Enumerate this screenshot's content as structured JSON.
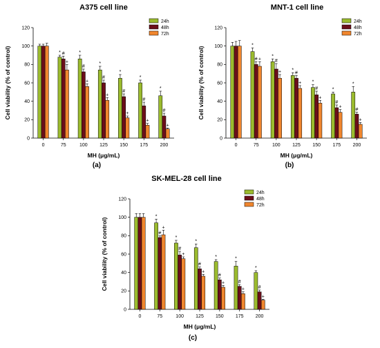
{
  "colors": {
    "24h": "#9bbb2e",
    "48h": "#6b0f1a",
    "72h": "#f0862e"
  },
  "chart_data": [
    {
      "type": "bar",
      "title": "A375 cell line",
      "panel_label": "(a)",
      "xlabel": "MH (μg/mL)",
      "ylabel": "Cell viability (% of control)",
      "ylim": [
        0,
        120
      ],
      "yticks": [
        0,
        20,
        40,
        60,
        80,
        100,
        120
      ],
      "grid": false,
      "legend_position": "top-right",
      "categories": [
        "0",
        "75",
        "100",
        "125",
        "150",
        "175",
        "200"
      ],
      "series": [
        {
          "name": "24h",
          "values": [
            100,
            88,
            86,
            74,
            65,
            60,
            46
          ],
          "errors": [
            2,
            2,
            4,
            4,
            4,
            3,
            5
          ],
          "marks": [
            "",
            "*",
            "*",
            "*",
            "*",
            "*",
            "*"
          ]
        },
        {
          "name": "48h",
          "values": [
            100,
            86,
            72,
            60,
            45,
            35,
            24
          ],
          "errors": [
            2,
            3,
            3,
            3,
            3,
            4,
            3
          ],
          "marks": [
            "",
            "#",
            "#",
            "#",
            "#",
            "#",
            "#"
          ]
        },
        {
          "name": "72h",
          "values": [
            100,
            74,
            56,
            41,
            22,
            14,
            10
          ],
          "errors": [
            3,
            6,
            3,
            3,
            2,
            2,
            1
          ],
          "marks": [
            "",
            "+",
            "+",
            "+",
            "+",
            "+",
            "+"
          ]
        }
      ]
    },
    {
      "type": "bar",
      "title": "MNT-1 cell line",
      "panel_label": "(b)",
      "xlabel": "MH (μg/mL)",
      "ylabel": "Cell viability (% of control)",
      "ylim": [
        0,
        120
      ],
      "yticks": [
        0,
        20,
        40,
        60,
        80,
        100,
        120
      ],
      "grid": false,
      "legend_position": "top-right",
      "categories": [
        "0",
        "75",
        "100",
        "125",
        "150",
        "175",
        "200"
      ],
      "series": [
        {
          "name": "24h",
          "values": [
            100,
            94,
            83,
            68,
            55,
            48,
            50
          ],
          "errors": [
            4,
            4,
            3,
            3,
            3,
            2,
            6
          ],
          "marks": [
            "",
            "*",
            "*",
            "*",
            "*",
            "*",
            "*"
          ]
        },
        {
          "name": "48h",
          "values": [
            100,
            80,
            75,
            65,
            47,
            33,
            26
          ],
          "errors": [
            5,
            3,
            6,
            3,
            4,
            3,
            2
          ],
          "marks": [
            "",
            "#",
            "#",
            "#",
            "#",
            "#",
            "#"
          ]
        },
        {
          "name": "72h",
          "values": [
            100,
            78,
            65,
            54,
            38,
            28,
            15
          ],
          "errors": [
            6,
            5,
            4,
            3,
            3,
            3,
            2
          ],
          "marks": [
            "",
            "+",
            "+",
            "+",
            "+",
            "+",
            "+"
          ]
        }
      ]
    },
    {
      "type": "bar",
      "title": "SK-MEL-28 cell line",
      "panel_label": "(c)",
      "xlabel": "MH (μg/mL)",
      "ylabel": "Cell viability (% of control)",
      "ylim": [
        0,
        120
      ],
      "yticks": [
        0,
        20,
        40,
        60,
        80,
        100,
        120
      ],
      "grid": false,
      "legend_position": "top-right",
      "categories": [
        "0",
        "75",
        "100",
        "125",
        "150",
        "175",
        "200"
      ],
      "series": [
        {
          "name": "24h",
          "values": [
            100,
            94,
            72,
            67,
            52,
            47,
            40
          ],
          "errors": [
            4,
            4,
            3,
            4,
            2,
            5,
            2
          ],
          "marks": [
            "",
            "*",
            "*",
            "*",
            "*",
            "*",
            "*"
          ]
        },
        {
          "name": "48h",
          "values": [
            100,
            78,
            59,
            44,
            32,
            25,
            19
          ],
          "errors": [
            4,
            2,
            4,
            2,
            2,
            2,
            2
          ],
          "marks": [
            "",
            "#",
            "#",
            "#",
            "#",
            "#",
            "#"
          ]
        },
        {
          "name": "72h",
          "values": [
            100,
            81,
            55,
            36,
            24,
            17,
            10
          ],
          "errors": [
            4,
            5,
            2,
            2,
            2,
            2,
            1
          ],
          "marks": [
            "",
            "+",
            "+",
            "+",
            "+",
            "+",
            "+"
          ]
        }
      ]
    }
  ]
}
